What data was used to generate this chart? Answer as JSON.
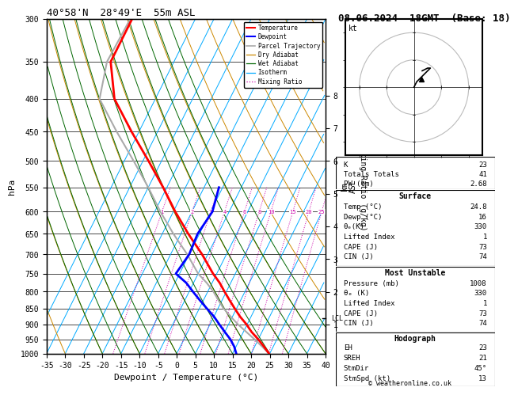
{
  "title_left": "40°58'N  28°49'E  55m ASL",
  "title_right": "08.06.2024  18GMT  (Base: 18)",
  "xlabel": "Dewpoint / Temperature (°C)",
  "ylabel_left": "hPa",
  "pressure_levels": [
    300,
    350,
    400,
    450,
    500,
    550,
    600,
    650,
    700,
    750,
    800,
    850,
    900,
    950,
    1000
  ],
  "xlim": [
    -35,
    40
  ],
  "temp_color": "#ff0000",
  "dewp_color": "#0000ff",
  "parcel_color": "#aaaaaa",
  "dry_adiabat_color": "#cc8800",
  "wet_adiabat_color": "#006600",
  "isotherm_color": "#00aaff",
  "mixing_ratio_color": "#cc00aa",
  "background_color": "#ffffff",
  "stats": {
    "K": 23,
    "Totals_Totals": 41,
    "PW_cm": 2.68,
    "Surface_Temp": 24.8,
    "Surface_Dewp": 16,
    "Surface_theta_e": 330,
    "Surface_LI": 1,
    "Surface_CAPE": 73,
    "Surface_CIN": 74,
    "MU_Pressure": 1008,
    "MU_theta_e": 330,
    "MU_LI": 1,
    "MU_CAPE": 73,
    "MU_CIN": 74,
    "Hodo_EH": 23,
    "Hodo_SREH": 21,
    "Hodo_StmDir": "45°",
    "Hodo_StmSpd": 13
  },
  "mixing_ratio_values": [
    1,
    2,
    3,
    4,
    6,
    8,
    10,
    15,
    20,
    25
  ],
  "km_ticks": [
    1,
    2,
    3,
    4,
    5,
    6,
    7,
    8
  ],
  "lcl_pressure": 880,
  "temp_profile": {
    "pressure": [
      1000,
      975,
      950,
      925,
      900,
      875,
      850,
      825,
      800,
      775,
      750,
      700,
      650,
      600,
      550,
      500,
      450,
      400,
      350,
      300
    ],
    "temp": [
      24.8,
      22.5,
      20.0,
      17.2,
      14.8,
      12.0,
      9.5,
      7.0,
      4.5,
      2.0,
      -1.0,
      -6.5,
      -13.0,
      -19.5,
      -26.0,
      -33.5,
      -42.0,
      -51.0,
      -57.0,
      -57.0
    ]
  },
  "dewp_profile": {
    "pressure": [
      1000,
      975,
      950,
      925,
      900,
      875,
      850,
      825,
      800,
      775,
      750,
      700,
      650,
      600,
      550
    ],
    "dewp": [
      16.0,
      14.5,
      12.5,
      10.0,
      7.5,
      5.0,
      2.0,
      -1.0,
      -4.0,
      -7.0,
      -11.0,
      -10.0,
      -10.5,
      -9.5,
      -11.0
    ]
  },
  "parcel_profile": {
    "pressure": [
      1000,
      975,
      950,
      925,
      900,
      875,
      850,
      825,
      800,
      775,
      750,
      700,
      650,
      600,
      550,
      500,
      450,
      400,
      350,
      300
    ],
    "temp": [
      24.8,
      22.0,
      19.0,
      15.8,
      12.5,
      9.5,
      6.5,
      4.0,
      1.5,
      -1.5,
      -5.0,
      -10.5,
      -17.0,
      -23.5,
      -30.0,
      -37.5,
      -46.0,
      -55.0,
      -58.0,
      -57.5
    ]
  },
  "skew": 45,
  "P_min": 300,
  "P_max": 1000
}
